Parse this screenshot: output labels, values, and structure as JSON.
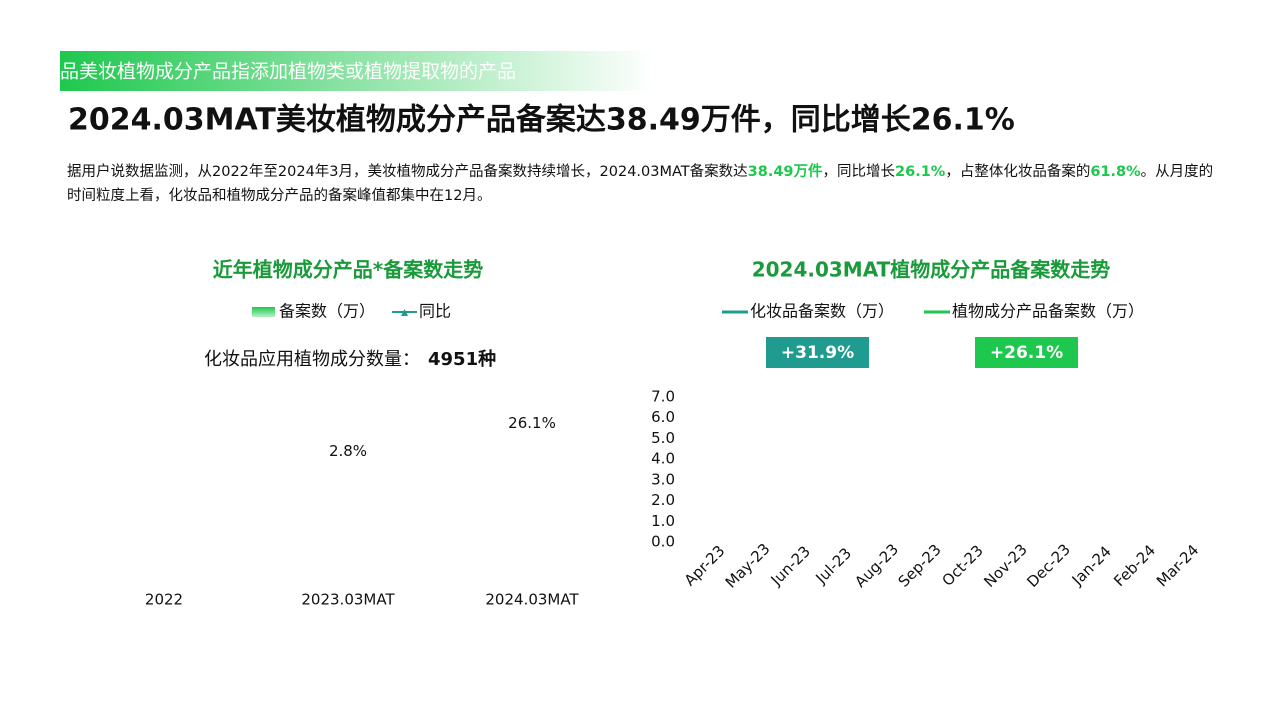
{
  "banner": "品美妆植物成分产品指添加植物类或植物提取物的产品",
  "title": "2024.03MAT美妆植物成分产品备案达38.49万件，同比增长26.1%",
  "paragraph": [
    {
      "text": "据用户说数据监测，从2022年至2024年3月，美妆植物成分产品备案数持续增长，2024.03MAT备案数达",
      "bold": false
    },
    {
      "text": "38.49万件",
      "bold": true
    },
    {
      "text": "，同比增长",
      "bold": false
    },
    {
      "text": "26.1%",
      "bold": true
    },
    {
      "text": "，占整体化妆品备案的",
      "bold": false
    },
    {
      "text": "61.8%",
      "bold": true
    },
    {
      "text": "。从月度的时间粒度上看，化妆品和植物成分产品的备案峰值都集中在12月。",
      "bold": false
    }
  ],
  "chart_data": [
    {
      "type": "bar",
      "title": "近年植物成分产品*备案数走势",
      "annotation": {
        "label": "化妆品应用植物成分数量：",
        "value": "4951种"
      },
      "categories": [
        "2022",
        "2023.03MAT",
        "2024.03MAT"
      ],
      "series": [
        {
          "name": "备案数（万）",
          "color": "#1ec84e",
          "values": [
            null,
            null,
            null
          ]
        },
        {
          "name": "同比",
          "color": "#1f9b8f",
          "values": [
            null,
            2.8,
            26.1
          ],
          "value_labels": [
            null,
            "2.8%",
            "26.1%"
          ]
        }
      ]
    },
    {
      "type": "line",
      "title": "2024.03MAT植物成分产品备案数走势",
      "categories": [
        "Apr-23",
        "May-23",
        "Jun-23",
        "Jul-23",
        "Aug-23",
        "Sep-23",
        "Oct-23",
        "Nov-23",
        "Dec-23",
        "Jan-24",
        "Feb-24",
        "Mar-24"
      ],
      "ylim": [
        0,
        7
      ],
      "yticks": [
        {
          "value": 0,
          "label": "0.0"
        },
        {
          "value": 1,
          "label": "1.0"
        },
        {
          "value": 2,
          "label": "2.0"
        },
        {
          "value": 3,
          "label": "3.0"
        },
        {
          "value": 4,
          "label": "4.0"
        },
        {
          "value": 5,
          "label": "5.0"
        },
        {
          "value": 6,
          "label": "6.0"
        },
        {
          "value": 7,
          "label": "7.0"
        }
      ],
      "series": [
        {
          "name": "化妆品备案数（万）",
          "color": "#1f9b8f",
          "values": [
            null,
            null,
            null,
            null,
            null,
            null,
            null,
            null,
            null,
            null,
            null,
            null
          ],
          "badge": "+31.9%"
        },
        {
          "name": "植物成分产品备案数（万）",
          "color": "#1ec84e",
          "values": [
            null,
            null,
            null,
            null,
            null,
            null,
            null,
            null,
            null,
            null,
            null,
            null
          ],
          "badge": "+26.1%"
        }
      ]
    }
  ]
}
